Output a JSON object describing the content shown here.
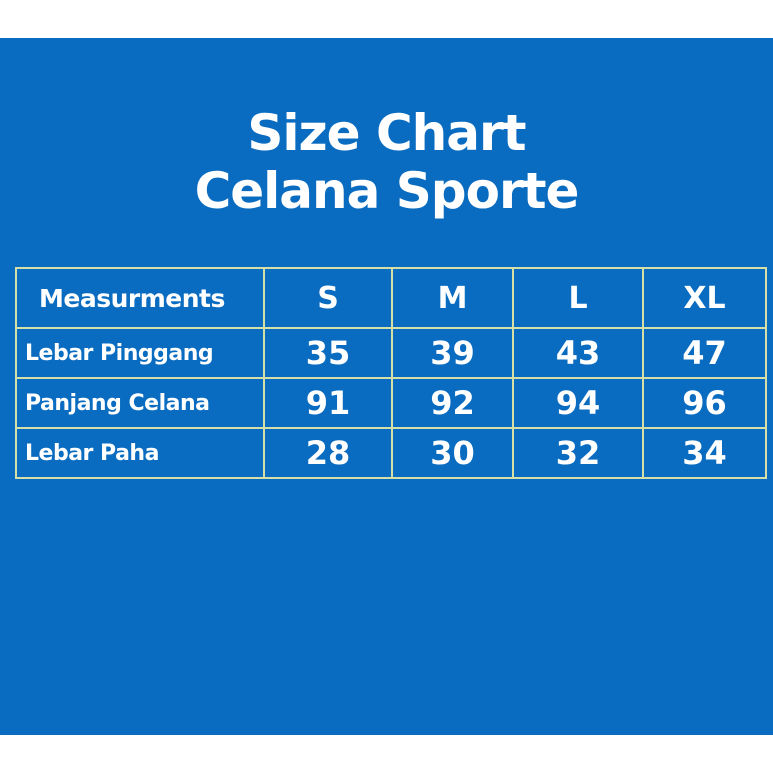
{
  "title_line1": "Size Chart",
  "title_line2": "Celana Sporte",
  "table": {
    "header": [
      "Measurments",
      "S",
      "M",
      "L",
      "XL"
    ],
    "rows": [
      [
        "Lebar Pinggang",
        "35",
        "39",
        "43",
        "47"
      ],
      [
        "Panjang Celana",
        "91",
        "92",
        "94",
        "96"
      ],
      [
        "Lebar Paha",
        "28",
        "30",
        "32",
        "34"
      ]
    ]
  },
  "colors": {
    "background": "#0a6cc0",
    "border": "#d6dfa6",
    "text": "#ffffff"
  }
}
